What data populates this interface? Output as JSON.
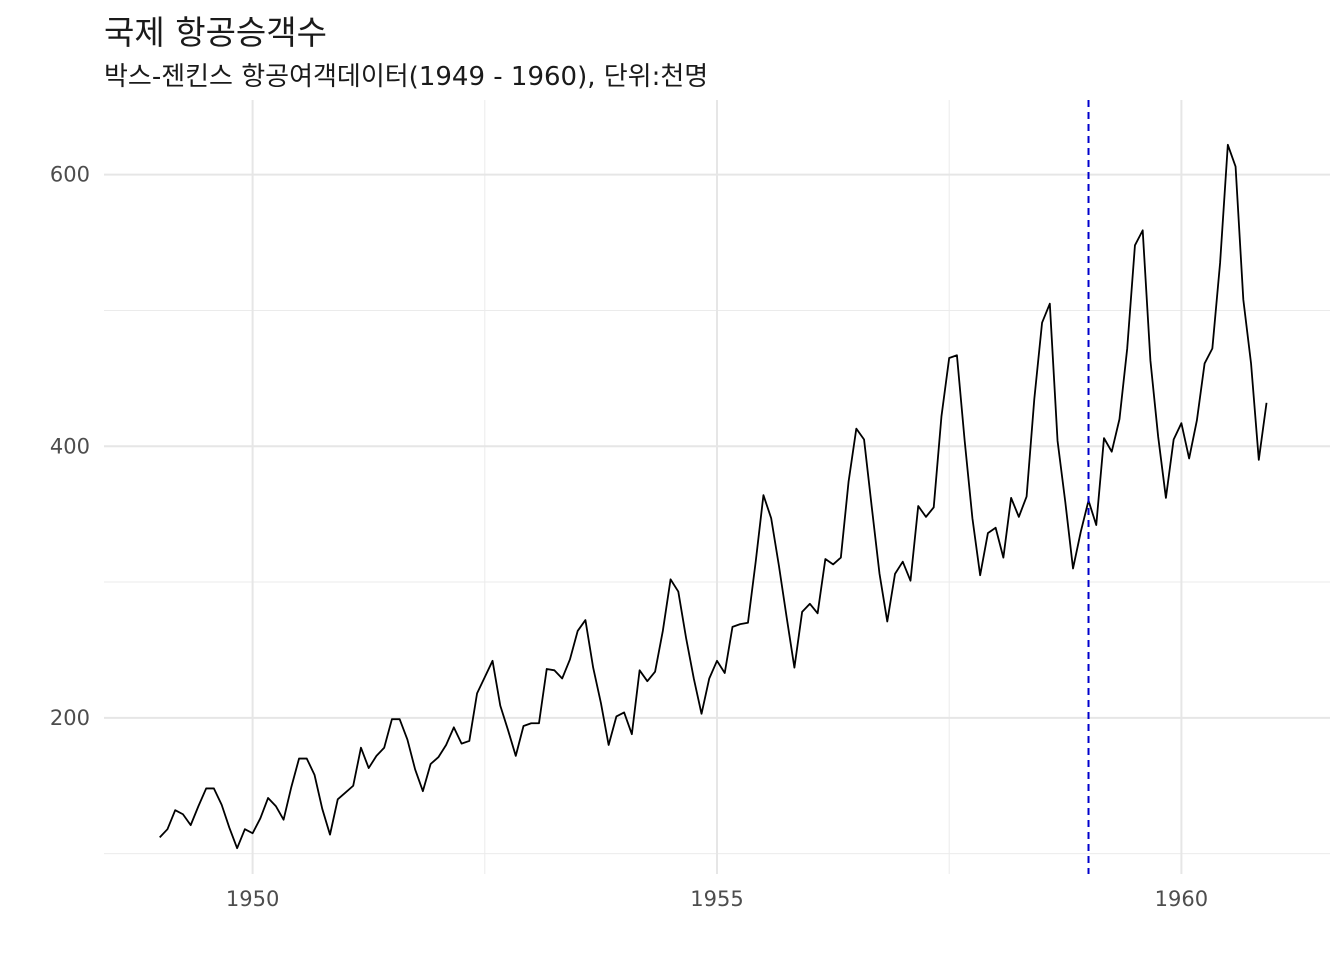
{
  "chart_data": {
    "type": "line",
    "title": "국제 항공승객수",
    "subtitle": "박스-젠킨스 항공여객데이터(1949 - 1960),  단위:천명",
    "xlabel": "",
    "ylabel": "",
    "x_start": 1949.0,
    "x_step": 0.083333,
    "xlim": [
      1948.4,
      1961.6
    ],
    "ylim": [
      85,
      655
    ],
    "x_ticks": [
      1950,
      1955,
      1960
    ],
    "x_minor_ticks": [
      1952.5,
      1957.5
    ],
    "y_ticks": [
      200,
      400,
      600
    ],
    "y_minor_ticks": [
      100,
      300,
      500
    ],
    "x_tick_labels": [
      "1950",
      "1955",
      "1960"
    ],
    "y_tick_labels": [
      "200",
      "400",
      "600"
    ],
    "grid": true,
    "vline": {
      "x": 1959.0,
      "color": "#0000cc",
      "style": "dashed"
    },
    "series": [
      {
        "color": "#000000",
        "values": [
          112,
          118,
          132,
          129,
          121,
          135,
          148,
          148,
          136,
          119,
          104,
          118,
          115,
          126,
          141,
          135,
          125,
          149,
          170,
          170,
          158,
          133,
          114,
          140,
          145,
          150,
          178,
          163,
          172,
          178,
          199,
          199,
          184,
          162,
          146,
          166,
          171,
          180,
          193,
          181,
          183,
          218,
          230,
          242,
          209,
          191,
          172,
          194,
          196,
          196,
          236,
          235,
          229,
          243,
          264,
          272,
          237,
          211,
          180,
          201,
          204,
          188,
          235,
          227,
          234,
          264,
          302,
          293,
          259,
          229,
          203,
          229,
          242,
          233,
          267,
          269,
          270,
          315,
          364,
          347,
          312,
          274,
          237,
          278,
          284,
          277,
          317,
          313,
          318,
          374,
          413,
          405,
          355,
          306,
          271,
          306,
          315,
          301,
          356,
          348,
          355,
          422,
          465,
          467,
          404,
          347,
          305,
          336,
          340,
          318,
          362,
          348,
          363,
          435,
          491,
          505,
          404,
          359,
          310,
          337,
          360,
          342,
          406,
          396,
          420,
          472,
          548,
          559,
          463,
          407,
          362,
          405,
          417,
          391,
          419,
          461,
          472,
          535,
          622,
          606,
          508,
          461,
          390,
          432
        ]
      }
    ]
  }
}
